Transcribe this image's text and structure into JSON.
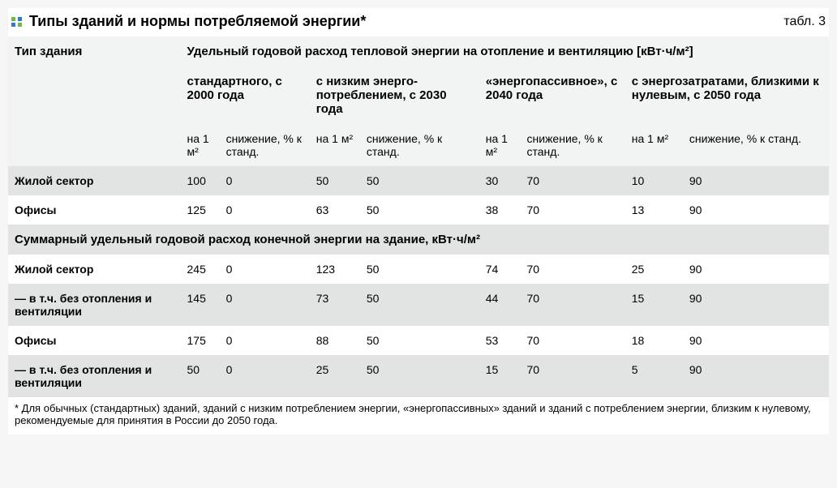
{
  "colors": {
    "dot_green": "#6fb845",
    "dot_blue": "#2b7cc4",
    "row_light": "#f2f3f3",
    "row_mid": "#e2e3e3",
    "row_white": "#ffffff",
    "text": "#000000"
  },
  "header": {
    "title": "Типы зданий и нормы потребляемой энергии*",
    "label": "табл. 3"
  },
  "table": {
    "col_type": "Тип здания",
    "main_header": "Удельный годовой расход тепловой энергии на отопление и вентиляцию [кВт·ч/м²]",
    "groups": [
      "стандартного, с 2000 года",
      "с низким энерго­потреблением, с 2030 года",
      "«энергопассив­ное», с 2040 года",
      "с энергозатратами, близкими к нуле­вым, с 2050 года"
    ],
    "sub_a": "на 1 м²",
    "sub_b": "снижение, % к станд.",
    "section1": [
      {
        "name": "Жилой сектор",
        "vals": [
          "100",
          "0",
          "50",
          "50",
          "30",
          "70",
          "10",
          "90"
        ]
      },
      {
        "name": "Офисы",
        "vals": [
          "125",
          "0",
          "63",
          "50",
          "38",
          "70",
          "13",
          "90"
        ]
      }
    ],
    "section2_header": "Суммарный удельный годовой расход конечной энергии на здание, кВт·ч/м²",
    "section2": [
      {
        "name": "Жилой сектор",
        "vals": [
          "245",
          "0",
          "123",
          "50",
          "74",
          "70",
          "25",
          "90"
        ]
      },
      {
        "name": "— в т.ч. без отопления и вентиляции",
        "vals": [
          "145",
          "0",
          "73",
          "50",
          "44",
          "70",
          "15",
          "90"
        ]
      },
      {
        "name": "Офисы",
        "vals": [
          "175",
          "0",
          "88",
          "50",
          "53",
          "70",
          "18",
          "90"
        ]
      },
      {
        "name": "— в т.ч. без отопления и вентиляции",
        "vals": [
          "50",
          "0",
          "25",
          "50",
          "15",
          "70",
          "5",
          "90"
        ]
      }
    ]
  },
  "footnote": "* Для обычных (стандартных) зданий, зданий с низким потреблением энергии, «энергопассивных» зданий и зданий с потреблением энергии, близким к нулевому, рекомендуемые для принятия в России до 2050 года."
}
